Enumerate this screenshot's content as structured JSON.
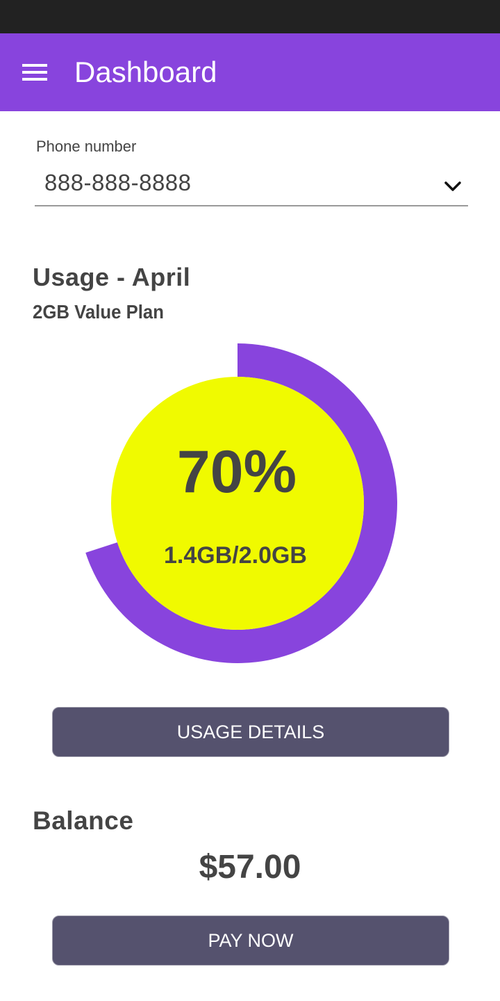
{
  "app_bar": {
    "title": "Dashboard",
    "menu_icon": "menu-icon"
  },
  "phone": {
    "label": "Phone number",
    "selected": "888-888-8888",
    "dropdown_icon": "chevron-down-icon"
  },
  "usage": {
    "title": "Usage - April",
    "plan": "2GB Value Plan",
    "percent_label": "70%",
    "percent_value": 70,
    "amount": "1.4GB/2.0GB",
    "details_button": "USAGE DETAILS"
  },
  "balance": {
    "title": "Balance",
    "amount": "$57.00",
    "pay_button": "PAY NOW"
  },
  "colors": {
    "primary": "#8844dd",
    "status_bar": "#222222",
    "gauge_fill": "#f0fa00",
    "button": "#55526e",
    "text": "#444444"
  }
}
